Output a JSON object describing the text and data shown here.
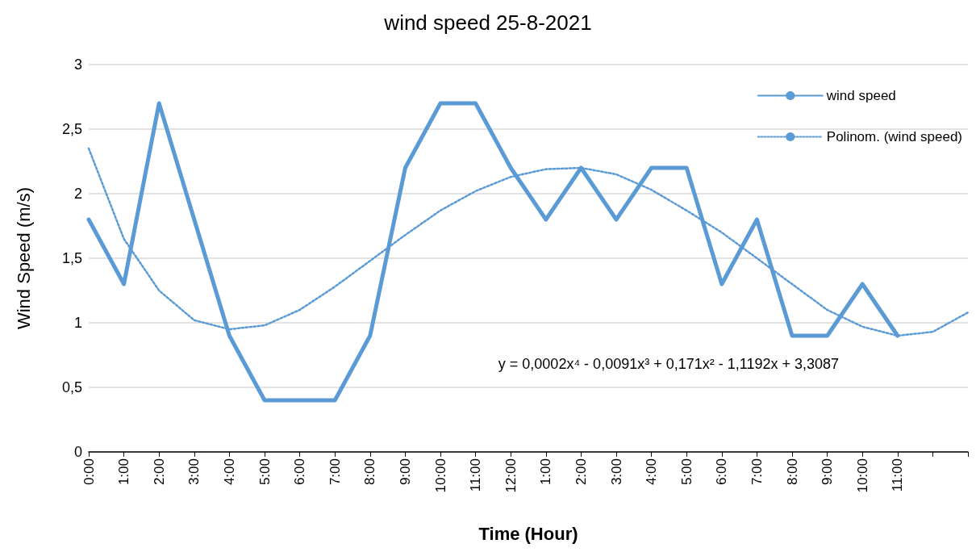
{
  "chart_data": {
    "type": "line",
    "title": "wind speed 25-8-2021",
    "xlabel": "Time (Hour)",
    "ylabel": "Wind Speed (m/s)",
    "categories": [
      "0:00",
      "1:00",
      "2:00",
      "3:00",
      "4:00",
      "5:00",
      "6:00",
      "7:00",
      "8:00",
      "9:00",
      "10:00",
      "11:00",
      "12:00",
      "1:00",
      "2:00",
      "3:00",
      "4:00",
      "5:00",
      "6:00",
      "7:00",
      "8:00",
      "9:00",
      "10:00",
      "11:00",
      null,
      null
    ],
    "series": [
      {
        "name": "wind speed",
        "color": "#5b9bd5",
        "line_style": "solid",
        "values": [
          1.8,
          1.3,
          2.7,
          1.8,
          0.9,
          0.4,
          0.4,
          0.4,
          0.9,
          2.2,
          2.7,
          2.7,
          2.2,
          1.8,
          2.2,
          1.8,
          2.2,
          2.2,
          1.3,
          1.8,
          0.9,
          0.9,
          1.3,
          0.9,
          null,
          null
        ]
      },
      {
        "name": "Polinom. (wind speed)",
        "color": "#5b9bd5",
        "line_style": "dotted",
        "values": [
          2.35,
          1.65,
          1.25,
          1.02,
          0.95,
          0.98,
          1.1,
          1.28,
          1.48,
          1.68,
          1.87,
          2.02,
          2.13,
          2.19,
          2.2,
          2.15,
          2.03,
          1.87,
          1.7,
          1.5,
          1.3,
          1.1,
          0.97,
          0.9,
          0.93,
          1.08
        ]
      }
    ],
    "ylim": [
      0,
      3
    ],
    "yticks": [
      0,
      {
        "value": 0.5,
        "label": "0,5"
      },
      1,
      {
        "value": 1.5,
        "label": "1,5"
      },
      2,
      {
        "value": 2.5,
        "label": "2,5"
      },
      3
    ],
    "grid": "y",
    "legend": "top right",
    "marker": "none",
    "annotations": [
      "y = 0,0002x⁴ - 0,0091x³ + 0,171x² - 1,1192x + 3,3087"
    ]
  }
}
